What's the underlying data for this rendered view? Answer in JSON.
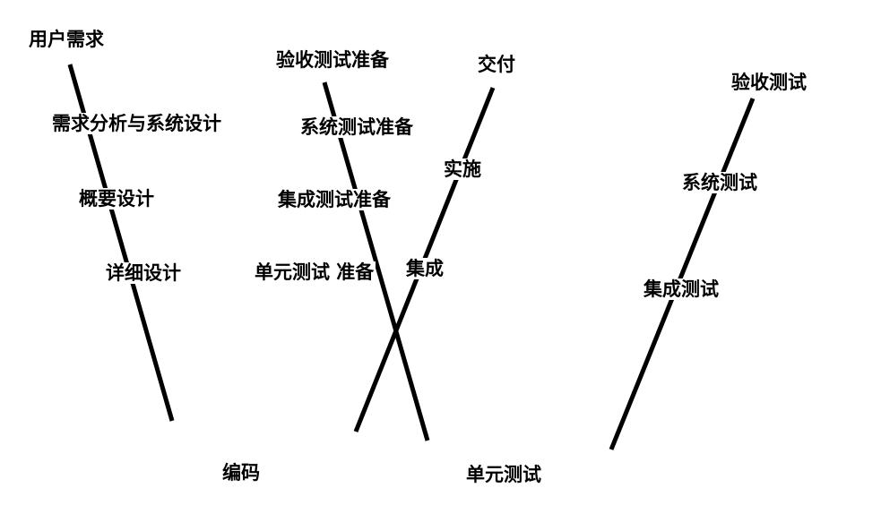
{
  "diagram": {
    "left_branch": {
      "user_requirements": "用户需求",
      "requirements_analysis": "需求分析与系统设计",
      "high_level_design": "概要设计",
      "detailed_design": "详细设计"
    },
    "middle_branch": {
      "acceptance_test_prep": "验收测试准备",
      "system_test_prep": "系统测试准备",
      "integration_test_prep": "集成测试准备",
      "unit_test_prep": "单元测试 准备"
    },
    "implementation_branch": {
      "delivery": "交付",
      "implementation": "实施",
      "integration": "集成"
    },
    "right_branch": {
      "acceptance_test": "验收测试",
      "system_test": "系统测试",
      "integration_test": "集成测试"
    },
    "bottom": {
      "coding": "编码",
      "unit_test": "单元测试"
    }
  }
}
